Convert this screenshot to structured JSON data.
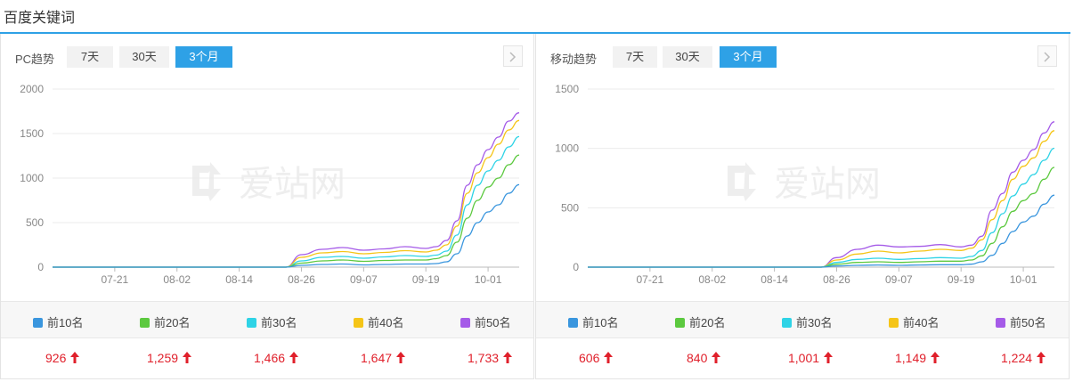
{
  "page": {
    "title": "百度关键词"
  },
  "colors": {
    "accent": "#2ea1e6",
    "up": "#e0202b"
  },
  "series_colors": [
    "#3a96de",
    "#5cc93f",
    "#2ed3e6",
    "#f5c518",
    "#a55be8"
  ],
  "panels": [
    {
      "label": "PC趋势",
      "tabs": [
        "7天",
        "30天",
        "3个月"
      ],
      "active_tab": 2,
      "watermark": "爱站网",
      "legend": [
        "前10名",
        "前20名",
        "前30名",
        "前40名",
        "前50名"
      ],
      "values": [
        "926",
        "1,259",
        "1,466",
        "1,647",
        "1,733"
      ]
    },
    {
      "label": "移动趋势",
      "tabs": [
        "7天",
        "30天",
        "3个月"
      ],
      "active_tab": 2,
      "watermark": "爱站网",
      "legend": [
        "前10名",
        "前20名",
        "前30名",
        "前40名",
        "前50名"
      ],
      "values": [
        "606",
        "840",
        "1,001",
        "1,149",
        "1,224"
      ]
    }
  ],
  "chart_data": [
    {
      "type": "line",
      "title": "PC趋势",
      "ylim": [
        0,
        2000
      ],
      "yticks": [
        "0",
        "500",
        "1000",
        "1500",
        "2000"
      ],
      "xticks": [
        "07-21",
        "08-02",
        "08-14",
        "08-26",
        "09-07",
        "09-19",
        "10-01"
      ],
      "grid": true,
      "x": [
        "07-09",
        "07-15",
        "07-21",
        "07-27",
        "08-02",
        "08-08",
        "08-14",
        "08-20",
        "08-23",
        "08-26",
        "08-30",
        "09-03",
        "09-07",
        "09-11",
        "09-15",
        "09-19",
        "09-21",
        "09-23",
        "09-25",
        "09-27",
        "09-29",
        "10-01",
        "10-03",
        "10-05",
        "10-07"
      ],
      "series": [
        {
          "name": "前10名",
          "values": [
            0,
            0,
            0,
            0,
            0,
            0,
            0,
            0,
            0,
            20,
            30,
            35,
            25,
            30,
            35,
            35,
            40,
            60,
            150,
            350,
            500,
            620,
            700,
            830,
            926
          ]
        },
        {
          "name": "前20名",
          "values": [
            0,
            0,
            0,
            0,
            0,
            0,
            0,
            0,
            0,
            45,
            70,
            80,
            65,
            75,
            80,
            80,
            95,
            130,
            280,
            550,
            750,
            900,
            1000,
            1150,
            1259
          ]
        },
        {
          "name": "前30名",
          "values": [
            0,
            0,
            0,
            0,
            0,
            0,
            0,
            0,
            0,
            70,
            110,
            120,
            100,
            115,
            130,
            120,
            135,
            180,
            360,
            700,
            920,
            1080,
            1200,
            1350,
            1466
          ]
        },
        {
          "name": "前40名",
          "values": [
            0,
            0,
            0,
            0,
            0,
            0,
            0,
            0,
            0,
            110,
            160,
            175,
            150,
            165,
            185,
            170,
            190,
            250,
            460,
            830,
            1060,
            1230,
            1380,
            1540,
            1647
          ]
        },
        {
          "name": "前50名",
          "values": [
            0,
            0,
            0,
            0,
            0,
            0,
            0,
            0,
            0,
            140,
            200,
            220,
            190,
            205,
            230,
            210,
            230,
            300,
            520,
            920,
            1150,
            1320,
            1460,
            1640,
            1733
          ]
        }
      ]
    },
    {
      "type": "line",
      "title": "移动趋势",
      "ylim": [
        0,
        1500
      ],
      "yticks": [
        "0",
        "500",
        "1000",
        "1500"
      ],
      "xticks": [
        "07-21",
        "08-02",
        "08-14",
        "08-26",
        "09-07",
        "09-19",
        "10-01"
      ],
      "grid": true,
      "x": [
        "07-09",
        "07-15",
        "07-21",
        "07-27",
        "08-02",
        "08-08",
        "08-14",
        "08-20",
        "08-23",
        "08-26",
        "08-30",
        "09-03",
        "09-07",
        "09-11",
        "09-15",
        "09-19",
        "09-21",
        "09-23",
        "09-25",
        "09-27",
        "09-29",
        "10-01",
        "10-03",
        "10-05",
        "10-07"
      ],
      "series": [
        {
          "name": "前10名",
          "values": [
            0,
            0,
            0,
            0,
            0,
            0,
            0,
            0,
            0,
            10,
            15,
            18,
            15,
            18,
            20,
            20,
            25,
            45,
            100,
            200,
            300,
            380,
            430,
            530,
            606
          ]
        },
        {
          "name": "前20名",
          "values": [
            0,
            0,
            0,
            0,
            0,
            0,
            0,
            0,
            0,
            25,
            40,
            45,
            40,
            45,
            50,
            50,
            60,
            95,
            200,
            340,
            470,
            560,
            620,
            740,
            840
          ]
        },
        {
          "name": "前30名",
          "values": [
            0,
            0,
            0,
            0,
            0,
            0,
            0,
            0,
            0,
            40,
            65,
            75,
            65,
            72,
            80,
            75,
            90,
            140,
            290,
            450,
            600,
            700,
            780,
            900,
            1001
          ]
        },
        {
          "name": "前40名",
          "values": [
            0,
            0,
            0,
            0,
            0,
            0,
            0,
            0,
            0,
            60,
            110,
            135,
            120,
            135,
            150,
            140,
            160,
            230,
            400,
            560,
            740,
            850,
            920,
            1060,
            1149
          ]
        },
        {
          "name": "前50名",
          "values": [
            0,
            0,
            0,
            0,
            0,
            0,
            0,
            0,
            0,
            80,
            150,
            185,
            170,
            175,
            190,
            170,
            185,
            260,
            480,
            620,
            800,
            900,
            990,
            1130,
            1224
          ]
        }
      ]
    }
  ]
}
